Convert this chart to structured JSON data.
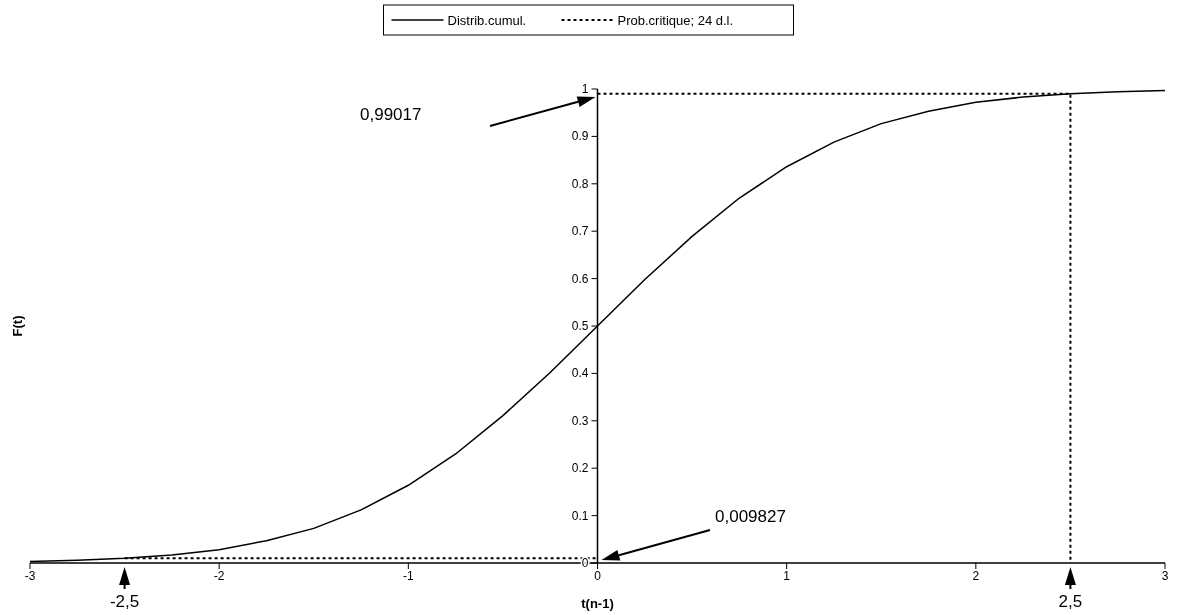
{
  "chart_data": {
    "type": "line",
    "xlabel": "t(n-1)",
    "ylabel": "F(t)",
    "xlim": [
      -3,
      3
    ],
    "xticks": [
      -3,
      -2,
      -1,
      0,
      1,
      2,
      3
    ],
    "ylim": [
      0,
      1
    ],
    "yticks": [
      0,
      0.1,
      0.2,
      0.3,
      0.4,
      0.5,
      0.6,
      0.7,
      0.8,
      0.9,
      1
    ],
    "grid": false,
    "legend": "top",
    "marker": "none",
    "series": [
      {
        "name": "Distrib.cumul.",
        "color": "#000000",
        "line_style": "solid",
        "x": [
          -3,
          -2.75,
          -2.5,
          -2.25,
          -2,
          -1.75,
          -1.5,
          -1.25,
          -1,
          -0.75,
          -0.5,
          -0.25,
          0,
          0.25,
          0.5,
          0.75,
          1,
          1.25,
          1.5,
          1.75,
          2,
          2.25,
          2.5,
          2.75,
          3
        ],
        "values": [
          0.003,
          0.006,
          0.01,
          0.017,
          0.028,
          0.047,
          0.073,
          0.112,
          0.164,
          0.23,
          0.311,
          0.402,
          0.5,
          0.598,
          0.689,
          0.77,
          0.836,
          0.888,
          0.927,
          0.953,
          0.972,
          0.983,
          0.99,
          0.994,
          0.997
        ]
      },
      {
        "name": "Prob.critique; 24 d.l.",
        "color": "#000000",
        "line_style": "dotted",
        "x": [
          -2.5,
          0,
          null,
          0,
          2.5,
          2.5
        ],
        "values": [
          0.009827,
          0.009827,
          null,
          0.99017,
          0.99017,
          0
        ]
      }
    ],
    "annotations": [
      "0,99017",
      "0,009827",
      {
        "text": "-2,5",
        "x": -2.5,
        "y": 0
      },
      {
        "text": "2,5",
        "x": 2.5,
        "y": 0
      }
    ]
  }
}
